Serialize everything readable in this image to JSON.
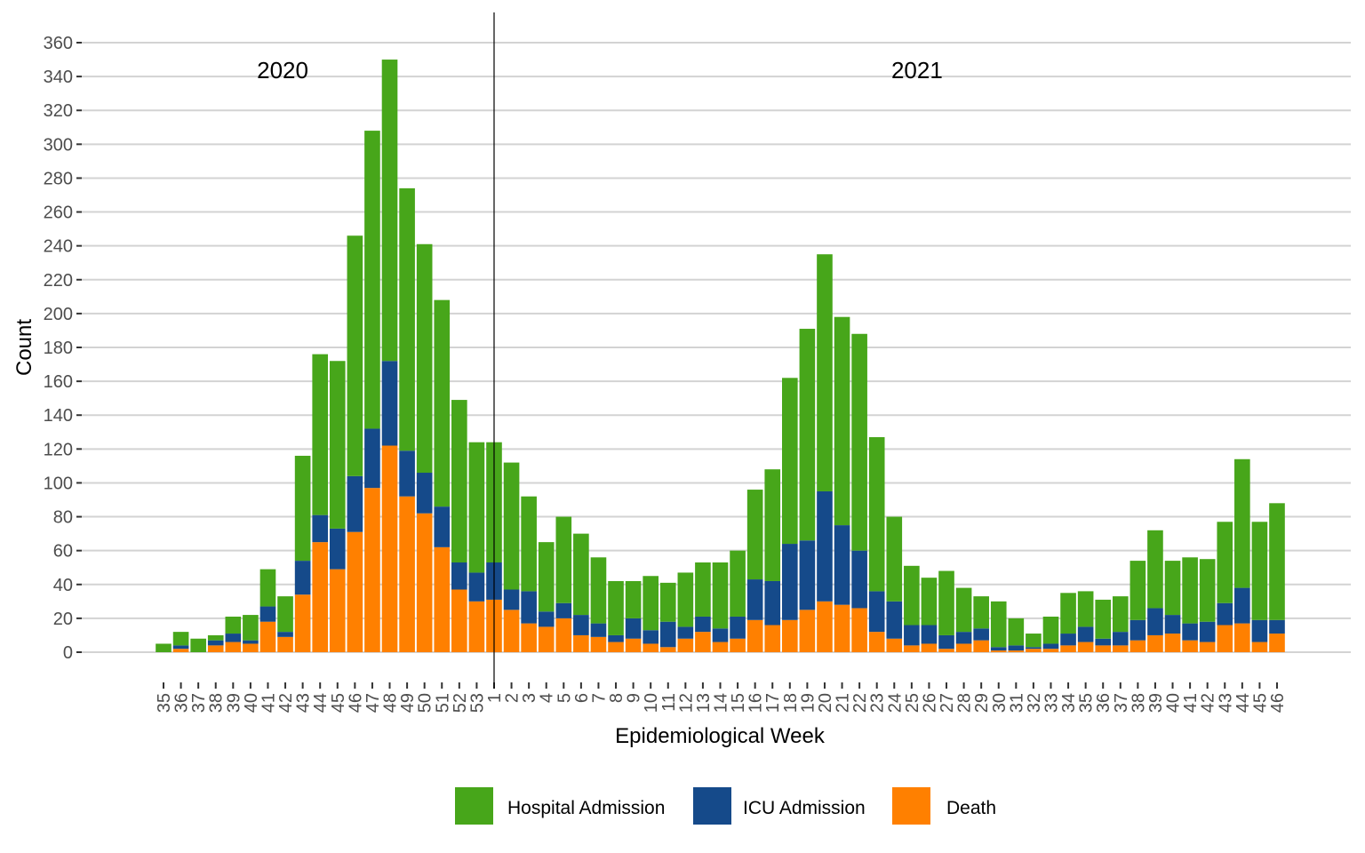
{
  "chart_data": {
    "type": "bar",
    "stacked": true,
    "title": "",
    "xlabel": "Epidemiological Week",
    "ylabel": "Count",
    "ylim": [
      0,
      360
    ],
    "yticks": [
      0,
      20,
      40,
      60,
      80,
      100,
      120,
      140,
      160,
      180,
      200,
      220,
      240,
      260,
      280,
      300,
      320,
      340,
      360
    ],
    "grid": true,
    "legend_position": "bottom",
    "annotations": [
      {
        "text": "2020",
        "at_category_index": 7
      },
      {
        "text": "2021",
        "at_category_index": 43
      }
    ],
    "year_divider_between": [
      "53",
      "1"
    ],
    "categories": [
      "35",
      "36",
      "37",
      "38",
      "39",
      "40",
      "41",
      "42",
      "43",
      "44",
      "45",
      "46",
      "47",
      "48",
      "49",
      "50",
      "51",
      "52",
      "53",
      "1",
      "2",
      "3",
      "4",
      "5",
      "6",
      "7",
      "8",
      "9",
      "10",
      "11",
      "12",
      "13",
      "14",
      "15",
      "16",
      "17",
      "18",
      "19",
      "20",
      "21",
      "22",
      "23",
      "24",
      "25",
      "26",
      "27",
      "28",
      "29",
      "30",
      "31",
      "32",
      "33",
      "34",
      "35",
      "36",
      "37",
      "38",
      "39",
      "40",
      "41",
      "42",
      "43",
      "44",
      "45",
      "46"
    ],
    "series": [
      {
        "name": "Death",
        "color": "#ff8000",
        "values": [
          0,
          2,
          0,
          4,
          6,
          5,
          18,
          9,
          34,
          65,
          49,
          71,
          97,
          122,
          92,
          82,
          62,
          37,
          30,
          31,
          25,
          17,
          15,
          20,
          10,
          9,
          6,
          8,
          5,
          3,
          8,
          12,
          6,
          8,
          19,
          16,
          19,
          25,
          30,
          28,
          26,
          12,
          8,
          4,
          5,
          2,
          5,
          7,
          1,
          1,
          2,
          2,
          4,
          6,
          4,
          4,
          7,
          10,
          11,
          7,
          6,
          16,
          17,
          6,
          11
        ]
      },
      {
        "name": "ICU Admission",
        "color": "#154a8a",
        "values": [
          0,
          2,
          0,
          3,
          5,
          2,
          9,
          3,
          20,
          16,
          24,
          33,
          35,
          50,
          27,
          24,
          24,
          16,
          17,
          22,
          12,
          19,
          9,
          9,
          12,
          8,
          4,
          12,
          8,
          15,
          7,
          9,
          8,
          13,
          24,
          26,
          45,
          41,
          65,
          47,
          34,
          24,
          22,
          12,
          11,
          8,
          7,
          7,
          2,
          3,
          1,
          3,
          7,
          9,
          4,
          8,
          12,
          16,
          11,
          10,
          12,
          13,
          21,
          13,
          8
        ]
      },
      {
        "name": "Hospital Admission",
        "color": "#47a61a",
        "values": [
          5,
          8,
          8,
          3,
          10,
          15,
          22,
          21,
          62,
          95,
          99,
          142,
          176,
          178,
          155,
          135,
          122,
          96,
          77,
          71,
          75,
          56,
          41,
          51,
          48,
          39,
          32,
          22,
          32,
          23,
          32,
          32,
          39,
          39,
          53,
          66,
          98,
          125,
          140,
          123,
          128,
          91,
          50,
          35,
          28,
          38,
          26,
          19,
          27,
          16,
          8,
          16,
          24,
          21,
          23,
          21,
          35,
          46,
          32,
          39,
          37,
          48,
          76,
          58,
          69
        ]
      }
    ]
  }
}
